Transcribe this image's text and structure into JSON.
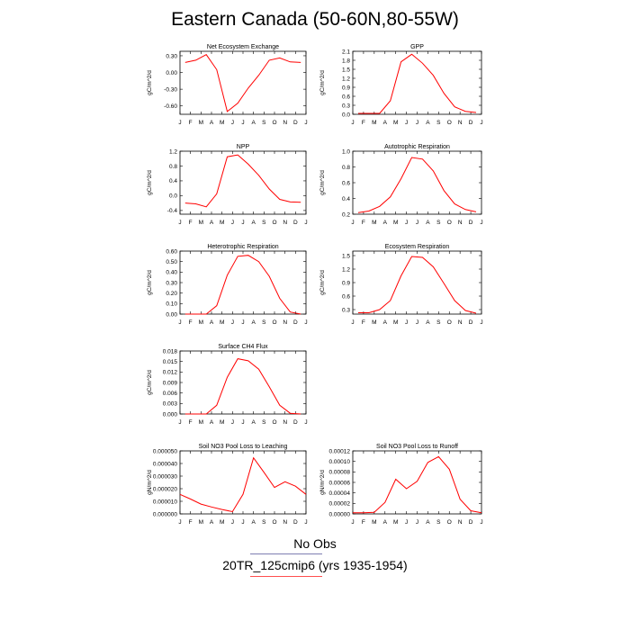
{
  "title": "Eastern Canada (50-60N,80-55W)",
  "legend": {
    "obs_label": "No Obs",
    "obs_color": "#7f7fb2",
    "model_label": "20TR_125cmip6 (yrs 1935-1954)",
    "model_color": "#ff4f4f"
  },
  "line_color": "#ff0000",
  "months": [
    "J",
    "F",
    "M",
    "A",
    "M",
    "J",
    "J",
    "A",
    "S",
    "O",
    "N",
    "D",
    "J"
  ],
  "chart_data": [
    {
      "type": "line",
      "title": "Net Ecosystem Exchange",
      "ylabel": "gC/m^2/d",
      "ylim": [
        -0.75,
        0.38
      ],
      "yticks": [
        0.3,
        0.0,
        -0.3,
        -0.6
      ],
      "yticklabels": [
        "0.30",
        "0.00",
        "-0.30",
        "-0.60"
      ],
      "values": [
        0.18,
        0.22,
        0.32,
        0.05,
        -0.7,
        -0.55,
        -0.28,
        -0.05,
        0.22,
        0.26,
        0.19,
        0.18
      ]
    },
    {
      "type": "line",
      "title": "GPP",
      "ylabel": "gC/m^2/d",
      "ylim": [
        0,
        2.1
      ],
      "yticks": [
        0,
        0.3,
        0.6,
        0.9,
        1.2,
        1.5,
        1.8,
        2.1
      ],
      "yticklabels": [
        "0.0",
        "0.3",
        "0.6",
        "0.9",
        "1.2",
        "1.5",
        "1.8",
        "2.1"
      ],
      "values": [
        0.03,
        0.03,
        0.03,
        0.45,
        1.75,
        2.0,
        1.7,
        1.3,
        0.7,
        0.25,
        0.1,
        0.06
      ]
    },
    {
      "type": "line",
      "title": "NPP",
      "ylabel": "gC/m^2/d",
      "ylim": [
        -0.5,
        1.2
      ],
      "yticks": [
        -0.4,
        0.0,
        0.4,
        0.8,
        1.2
      ],
      "yticklabels": [
        "-0.4",
        "0.0",
        "0.4",
        "0.8",
        "1.2"
      ],
      "values": [
        -0.2,
        -0.22,
        -0.3,
        0.05,
        1.05,
        1.1,
        0.85,
        0.55,
        0.18,
        -0.1,
        -0.17,
        -0.18
      ]
    },
    {
      "type": "line",
      "title": "Autotrophic Respiration",
      "ylabel": "gC/m^2/d",
      "ylim": [
        0.2,
        1.0
      ],
      "yticks": [
        0.2,
        0.4,
        0.6,
        0.8,
        1.0
      ],
      "yticklabels": [
        "0.2",
        "0.4",
        "0.6",
        "0.8",
        "1.0"
      ],
      "values": [
        0.22,
        0.24,
        0.3,
        0.42,
        0.65,
        0.92,
        0.9,
        0.75,
        0.5,
        0.33,
        0.26,
        0.23
      ]
    },
    {
      "type": "line",
      "title": "Heterotrophic Respiration",
      "ylabel": "gC/m^2/d",
      "ylim": [
        0,
        0.6
      ],
      "yticks": [
        0,
        0.1,
        0.2,
        0.3,
        0.4,
        0.5,
        0.6
      ],
      "yticklabels": [
        "0.00",
        "0.10",
        "0.20",
        "0.30",
        "0.40",
        "0.50",
        "0.60"
      ],
      "values": [
        0.0,
        0.0,
        0.0,
        0.08,
        0.37,
        0.55,
        0.56,
        0.5,
        0.36,
        0.15,
        0.02,
        0.0
      ]
    },
    {
      "type": "line",
      "title": "Ecosystem Respiration",
      "ylabel": "gC/m^2/d",
      "ylim": [
        0.2,
        1.6
      ],
      "yticks": [
        0.3,
        0.6,
        0.9,
        1.2,
        1.5
      ],
      "yticklabels": [
        "0.3",
        "0.6",
        "0.9",
        "1.2",
        "1.5"
      ],
      "values": [
        0.23,
        0.23,
        0.3,
        0.5,
        1.05,
        1.48,
        1.46,
        1.25,
        0.88,
        0.5,
        0.28,
        0.22
      ]
    },
    {
      "type": "line",
      "title": "Surface CH4 Flux",
      "ylabel": "gC/m^2/d",
      "ylim": [
        0,
        0.018
      ],
      "yticks": [
        0,
        0.003,
        0.006,
        0.009,
        0.012,
        0.015,
        0.018
      ],
      "yticklabels": [
        "0.000",
        "0.003",
        "0.006",
        "0.009",
        "0.012",
        "0.015",
        "0.018"
      ],
      "values": [
        0.0,
        0.0,
        0.0,
        0.0025,
        0.0105,
        0.0158,
        0.0152,
        0.0128,
        0.0078,
        0.0025,
        0.0002,
        0.0
      ]
    },
    {
      "type": "line",
      "title": "Soil NO3 Pool Loss to Leaching",
      "ylabel": "gN/m^2/d",
      "ylim": [
        0,
        5e-05
      ],
      "yticks": [
        0,
        1e-05,
        2e-05,
        3e-05,
        4e-05,
        5e-05
      ],
      "yticklabels": [
        "0.000000",
        "0.000010",
        "0.000020",
        "0.000030",
        "0.000040",
        "0.000050"
      ],
      "values": [
        1.55e-05,
        1.18e-05,
        7.8e-06,
        5.5e-06,
        3.5e-06,
        1.8e-06,
        1.55e-05,
        4.45e-05,
        3.3e-05,
        2.1e-05,
        2.55e-05,
        2.2e-05,
        1.55e-05
      ]
    },
    {
      "type": "line",
      "title": "Soil NO3 Pool Loss to Runoff",
      "ylabel": "gN/m^2/d",
      "ylim": [
        0,
        0.00012
      ],
      "yticks": [
        0,
        2e-05,
        4e-05,
        6e-05,
        8e-05,
        0.0001,
        0.00012
      ],
      "yticklabels": [
        "0.00000",
        "0.00002",
        "0.00004",
        "0.00006",
        "0.00008",
        "0.00010",
        "0.00012"
      ],
      "values": [
        2e-06,
        2e-06,
        3e-06,
        2.2e-05,
        6.6e-05,
        4.8e-05,
        6.2e-05,
        9.8e-05,
        0.000109,
        8.5e-05,
        2.8e-05,
        6e-06,
        2e-06
      ]
    }
  ]
}
